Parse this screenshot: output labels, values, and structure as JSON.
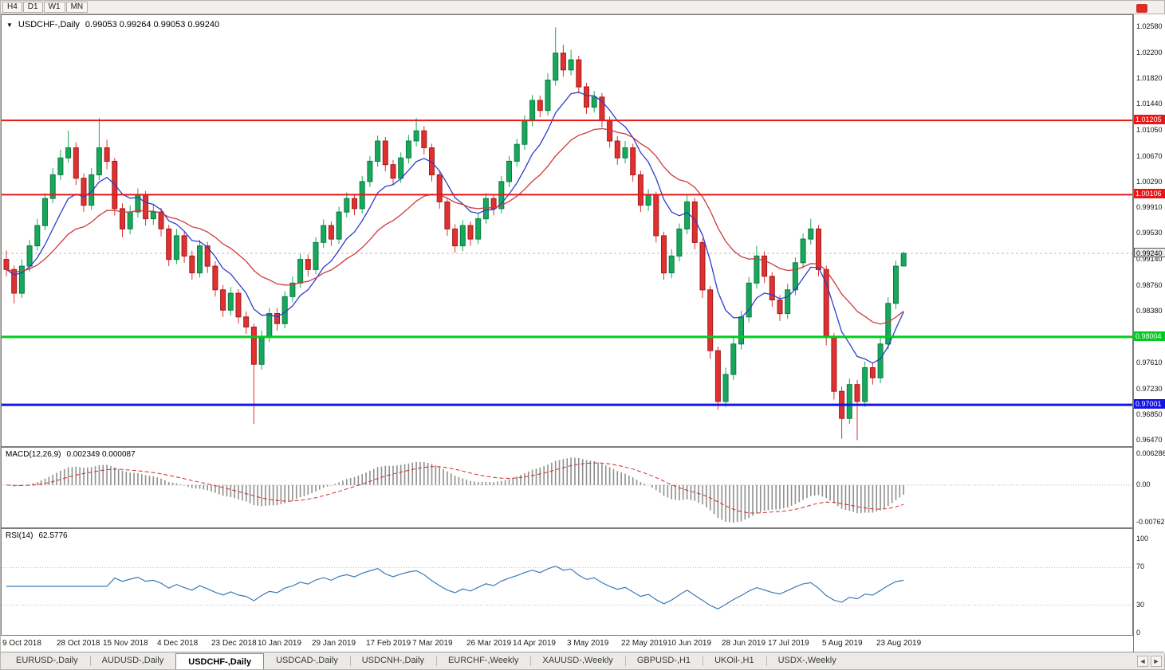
{
  "toolbar": {
    "timeframes": [
      "H4",
      "D1",
      "W1",
      "MN"
    ]
  },
  "icons": {
    "chart_marker": "▼",
    "tab_scroll_left": "◄",
    "tab_scroll_right": "►",
    "app_badge": "red-badge"
  },
  "chart_data": {
    "type": "candlestick",
    "symbol": "USDCHF-,Daily",
    "ohlc_text": "0.99053 0.99264 0.99053 0.99240",
    "ohlc_current": {
      "open": 0.99053,
      "high": 0.99264,
      "low": 0.99053,
      "close": 0.9924
    },
    "price_range": {
      "max": 1.0276,
      "min": 0.9639
    },
    "y_ticks": [
      "1.02580",
      "1.02200",
      "1.01820",
      "1.01440",
      "1.01050",
      "1.00670",
      "1.00290",
      "0.99910",
      "0.99530",
      "0.99140",
      "0.98760",
      "0.98380",
      "0.97610",
      "0.97230",
      "0.96850",
      "0.96470"
    ],
    "current_price": {
      "value": 0.9924,
      "label": "0.99240"
    },
    "levels": [
      {
        "price": 1.01205,
        "label": "1.01205",
        "color": "#e81717",
        "width": 2,
        "role": "resistance-1"
      },
      {
        "price": 1.00106,
        "label": "1.00106",
        "color": "#e81717",
        "width": 2,
        "role": "resistance-2"
      },
      {
        "price": 0.98004,
        "label": "0.98004",
        "color": "#00cc1e",
        "width": 3,
        "role": "support-1"
      },
      {
        "price": 0.97001,
        "label": "0.97001",
        "color": "#1414e8",
        "width": 3,
        "role": "support-2"
      }
    ],
    "colors": {
      "up": "#18a85c",
      "up_border": "#0c7a40",
      "down": "#e03030",
      "down_border": "#9e1d1d",
      "current_line": "#bdbdbd"
    },
    "moving_averages": [
      {
        "period": 8,
        "color": "#2c3ecb",
        "name": "ma-fast"
      },
      {
        "period": 21,
        "color": "#cf3a3a",
        "name": "ma-slow"
      }
    ],
    "x_labels": [
      {
        "text": "9 Oct 2018",
        "candle": 0
      },
      {
        "text": "28 Oct 2018",
        "candle": 7
      },
      {
        "text": "15 Nov 2018",
        "candle": 13
      },
      {
        "text": "4 Dec 2018",
        "candle": 20
      },
      {
        "text": "23 Dec 2018",
        "candle": 27
      },
      {
        "text": "10 Jan 2019",
        "candle": 33
      },
      {
        "text": "29 Jan 2019",
        "candle": 40
      },
      {
        "text": "17 Feb 2019",
        "candle": 47
      },
      {
        "text": "7 Mar 2019",
        "candle": 53
      },
      {
        "text": "26 Mar 2019",
        "candle": 60
      },
      {
        "text": "14 Apr 2019",
        "candle": 66
      },
      {
        "text": "3 May 2019",
        "candle": 73
      },
      {
        "text": "22 May 2019",
        "candle": 80
      },
      {
        "text": "10 Jun 2019",
        "candle": 86
      },
      {
        "text": "28 Jun 2019",
        "candle": 93
      },
      {
        "text": "17 Jul 2019",
        "candle": 99
      },
      {
        "text": "5 Aug 2019",
        "candle": 106
      },
      {
        "text": "23 Aug 2019",
        "candle": 113
      }
    ],
    "candles": [
      [
        0.9915,
        0.9928,
        0.989,
        0.99
      ],
      [
        0.99,
        0.9906,
        0.985,
        0.9865
      ],
      [
        0.9865,
        0.9915,
        0.9858,
        0.9905
      ],
      [
        0.9905,
        0.9944,
        0.9897,
        0.9935
      ],
      [
        0.9935,
        0.9975,
        0.9928,
        0.9965
      ],
      [
        0.9965,
        1.0013,
        0.9958,
        1.0005
      ],
      [
        1.0005,
        1.005,
        0.9998,
        1.004
      ],
      [
        1.004,
        1.0077,
        1.0032,
        1.0065
      ],
      [
        1.0065,
        1.0105,
        1.0058,
        1.008
      ],
      [
        1.008,
        1.0088,
        1.0025,
        1.0035
      ],
      [
        1.0035,
        1.0042,
        0.9985,
        0.9995
      ],
      [
        0.9995,
        1.005,
        0.9988,
        1.004
      ],
      [
        1.004,
        1.0124,
        1.0032,
        1.008
      ],
      [
        1.008,
        1.0092,
        1.0048,
        1.006
      ],
      [
        1.006,
        1.0065,
        0.998,
        0.999
      ],
      [
        0.999,
        0.9998,
        0.9948,
        0.996
      ],
      [
        0.996,
        0.9995,
        0.9952,
        0.9985
      ],
      [
        0.9985,
        1.002,
        0.9977,
        1.001
      ],
      [
        1.001,
        1.0016,
        0.9965,
        0.9975
      ],
      [
        0.9975,
        0.9996,
        0.9966,
        0.9985
      ],
      [
        0.9985,
        0.9991,
        0.9949,
        0.996
      ],
      [
        0.996,
        0.9966,
        0.9905,
        0.9915
      ],
      [
        0.9915,
        0.996,
        0.9908,
        0.995
      ],
      [
        0.995,
        0.9957,
        0.991,
        0.992
      ],
      [
        0.992,
        0.9928,
        0.9885,
        0.9895
      ],
      [
        0.9895,
        0.9944,
        0.9888,
        0.9935
      ],
      [
        0.9935,
        0.9941,
        0.9895,
        0.9905
      ],
      [
        0.9905,
        0.9912,
        0.986,
        0.987
      ],
      [
        0.987,
        0.9877,
        0.983,
        0.984
      ],
      [
        0.984,
        0.9874,
        0.9832,
        0.9865
      ],
      [
        0.9865,
        0.9871,
        0.982,
        0.983
      ],
      [
        0.983,
        0.9838,
        0.9805,
        0.9815
      ],
      [
        0.9815,
        0.982,
        0.9672,
        0.976
      ],
      [
        0.976,
        0.981,
        0.9752,
        0.98
      ],
      [
        0.98,
        0.9843,
        0.9793,
        0.9835
      ],
      [
        0.9835,
        0.9843,
        0.981,
        0.982
      ],
      [
        0.982,
        0.9868,
        0.9813,
        0.986
      ],
      [
        0.986,
        0.989,
        0.9852,
        0.988
      ],
      [
        0.988,
        0.9923,
        0.9873,
        0.9915
      ],
      [
        0.9915,
        0.9922,
        0.989,
        0.99
      ],
      [
        0.99,
        0.9948,
        0.9893,
        0.994
      ],
      [
        0.994,
        0.9974,
        0.9932,
        0.9965
      ],
      [
        0.9965,
        0.9971,
        0.9935,
        0.9945
      ],
      [
        0.9945,
        0.9993,
        0.9938,
        0.9985
      ],
      [
        0.9985,
        1.0014,
        0.9977,
        1.0005
      ],
      [
        1.0005,
        1.0012,
        0.998,
        0.999
      ],
      [
        0.999,
        1.0038,
        0.9983,
        1.003
      ],
      [
        1.003,
        1.0068,
        1.0022,
        1.006
      ],
      [
        1.006,
        1.0098,
        1.0052,
        1.009
      ],
      [
        1.009,
        1.0096,
        1.0045,
        1.0055
      ],
      [
        1.0055,
        1.0062,
        1.0025,
        1.0035
      ],
      [
        1.0035,
        1.0073,
        1.0028,
        1.0065
      ],
      [
        1.0065,
        1.0099,
        1.0057,
        1.009
      ],
      [
        1.009,
        1.0124,
        1.0082,
        1.0105
      ],
      [
        1.0105,
        1.0112,
        1.007,
        1.008
      ],
      [
        1.008,
        1.0086,
        1.003,
        1.004
      ],
      [
        1.004,
        1.0046,
        0.999,
        1.0
      ],
      [
        1.0,
        1.0006,
        0.995,
        0.996
      ],
      [
        0.996,
        0.9967,
        0.9925,
        0.9935
      ],
      [
        0.9935,
        0.9973,
        0.9927,
        0.9965
      ],
      [
        0.9965,
        0.9971,
        0.9935,
        0.9945
      ],
      [
        0.9945,
        0.9983,
        0.9938,
        0.9975
      ],
      [
        0.9975,
        1.0013,
        0.9968,
        1.0005
      ],
      [
        1.0005,
        1.0011,
        0.998,
        0.999
      ],
      [
        0.999,
        1.0038,
        0.9983,
        1.003
      ],
      [
        1.003,
        1.0068,
        1.0022,
        1.006
      ],
      [
        1.006,
        1.0093,
        1.0052,
        1.0085
      ],
      [
        1.0085,
        1.0128,
        1.0077,
        1.012
      ],
      [
        1.012,
        1.0158,
        1.0112,
        1.015
      ],
      [
        1.015,
        1.0157,
        1.0125,
        1.0135
      ],
      [
        1.0135,
        1.019,
        1.0128,
        1.018
      ],
      [
        1.018,
        1.0258,
        1.0172,
        1.022
      ],
      [
        1.022,
        1.0232,
        1.0185,
        1.0195
      ],
      [
        1.0195,
        1.0225,
        1.0187,
        1.021
      ],
      [
        1.021,
        1.0216,
        1.016,
        1.017
      ],
      [
        1.017,
        1.0176,
        1.013,
        1.014
      ],
      [
        1.014,
        1.0164,
        1.0132,
        1.0155
      ],
      [
        1.0155,
        1.0161,
        1.011,
        1.012
      ],
      [
        1.012,
        1.0126,
        1.008,
        1.009
      ],
      [
        1.009,
        1.0097,
        1.0055,
        1.0065
      ],
      [
        1.0065,
        1.009,
        1.0057,
        1.008
      ],
      [
        1.008,
        1.0086,
        1.003,
        1.004
      ],
      [
        1.004,
        1.0046,
        0.9985,
        0.9995
      ],
      [
        0.9995,
        1.0019,
        0.9987,
        1.001
      ],
      [
        1.001,
        1.0015,
        0.994,
        0.995
      ],
      [
        0.995,
        0.9956,
        0.9885,
        0.9895
      ],
      [
        0.9895,
        0.993,
        0.9887,
        0.992
      ],
      [
        0.992,
        0.9968,
        0.9912,
        0.996
      ],
      [
        0.996,
        1.001,
        0.9952,
        1.0
      ],
      [
        1.0,
        1.0006,
        0.993,
        0.994
      ],
      [
        0.994,
        0.9946,
        0.9858,
        0.987
      ],
      [
        0.987,
        0.9876,
        0.9768,
        0.978
      ],
      [
        0.978,
        0.9786,
        0.9693,
        0.9705
      ],
      [
        0.9705,
        0.9755,
        0.9697,
        0.9745
      ],
      [
        0.9745,
        0.9799,
        0.9737,
        0.979
      ],
      [
        0.979,
        0.9839,
        0.9782,
        0.983
      ],
      [
        0.983,
        0.9889,
        0.9822,
        0.988
      ],
      [
        0.988,
        0.9935,
        0.9872,
        0.992
      ],
      [
        0.992,
        0.9927,
        0.988,
        0.989
      ],
      [
        0.989,
        0.9896,
        0.9845,
        0.9855
      ],
      [
        0.9855,
        0.9862,
        0.9824,
        0.9835
      ],
      [
        0.9835,
        0.9879,
        0.9827,
        0.987
      ],
      [
        0.987,
        0.9918,
        0.9862,
        0.991
      ],
      [
        0.991,
        0.9953,
        0.9902,
        0.9945
      ],
      [
        0.9945,
        0.9975,
        0.9937,
        0.996
      ],
      [
        0.996,
        0.9966,
        0.989,
        0.99
      ],
      [
        0.99,
        0.9906,
        0.9788,
        0.98
      ],
      [
        0.98,
        0.9806,
        0.9708,
        0.972
      ],
      [
        0.972,
        0.9727,
        0.965,
        0.968
      ],
      [
        0.968,
        0.9739,
        0.9672,
        0.973
      ],
      [
        0.973,
        0.9737,
        0.9648,
        0.9705
      ],
      [
        0.9705,
        0.9764,
        0.9697,
        0.9755
      ],
      [
        0.9755,
        0.9762,
        0.973,
        0.974
      ],
      [
        0.974,
        0.9799,
        0.9732,
        0.979
      ],
      [
        0.979,
        0.9859,
        0.9782,
        0.985
      ],
      [
        0.985,
        0.9913,
        0.9842,
        0.9905
      ],
      [
        0.99053,
        0.99264,
        0.99053,
        0.9924
      ]
    ],
    "indicators": {
      "macd": {
        "label": "MACD(12,26,9)",
        "values_text": "0.002349 0.000087",
        "params": [
          12,
          26,
          9
        ],
        "range": {
          "max": 0.006286,
          "min": -0.00762
        },
        "axis_ticks": [
          {
            "text": "0.006286",
            "value": 0.006286
          },
          {
            "text": "0.00",
            "value": 0
          },
          {
            "text": "-0.00762",
            "value": -0.00762
          }
        ],
        "histogram_color": "#8f8f8f",
        "signal_color": "#d42a2a"
      },
      "rsi": {
        "label": "RSI(14)",
        "value_text": "62.5776",
        "period": 14,
        "line_color": "#3c7ab8",
        "levels": [
          70,
          30
        ],
        "axis_ticks": [
          {
            "text": "100",
            "value": 100
          },
          {
            "text": "70",
            "value": 70
          },
          {
            "text": "30",
            "value": 30
          },
          {
            "text": "0",
            "value": 0
          }
        ]
      }
    }
  },
  "tabbar": {
    "tabs": [
      {
        "label": "EURUSD-,Daily",
        "active": false
      },
      {
        "label": "AUDUSD-,Daily",
        "active": false
      },
      {
        "label": "USDCHF-,Daily",
        "active": true
      },
      {
        "label": "USDCAD-,Daily",
        "active": false
      },
      {
        "label": "USDCNH-,Daily",
        "active": false
      },
      {
        "label": "EURCHF-,Weekly",
        "active": false
      },
      {
        "label": "XAUUSD-,Weekly",
        "active": false
      },
      {
        "label": "GBPUSD-,H1",
        "active": false
      },
      {
        "label": "UKOil-,H1",
        "active": false
      },
      {
        "label": "USDX-,Weekly",
        "active": false
      }
    ]
  }
}
